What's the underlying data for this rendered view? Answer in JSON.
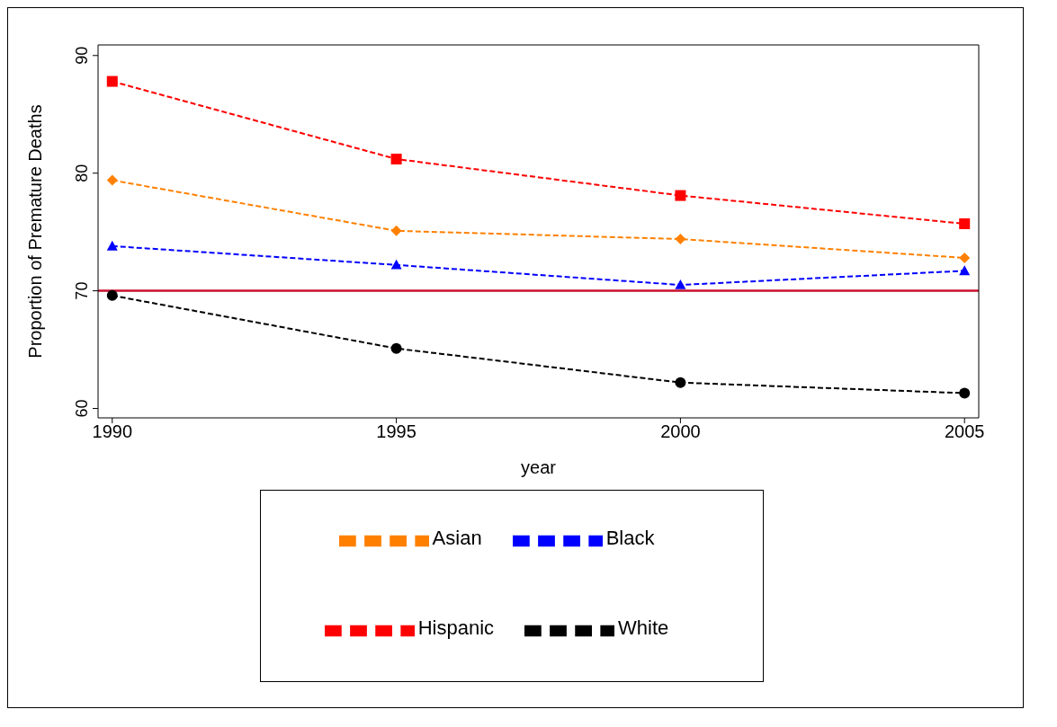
{
  "chart_data": {
    "type": "line",
    "xlabel": "year",
    "ylabel": "Proportion of Premature Deaths",
    "x": [
      1990,
      1995,
      2000,
      2005
    ],
    "series": [
      {
        "name": "White",
        "color": "#000000",
        "marker": "circle",
        "values": [
          69.6,
          65.1,
          62.2,
          61.3
        ]
      },
      {
        "name": "Black",
        "color": "#0000ff",
        "marker": "triangle",
        "values": [
          73.8,
          72.2,
          70.5,
          71.7
        ]
      },
      {
        "name": "Hispanic",
        "color": "#ff0000",
        "marker": "square",
        "values": [
          87.8,
          81.2,
          78.1,
          75.7
        ]
      },
      {
        "name": "Asian",
        "color": "#ff8000",
        "marker": "diamond",
        "values": [
          79.4,
          75.1,
          74.4,
          72.8
        ]
      }
    ],
    "xlim": [
      1989.75,
      2005.25
    ],
    "xticks": [
      1990,
      1995,
      2000,
      2005
    ],
    "ylim": [
      59.2,
      90.9
    ],
    "yticks": [
      60,
      70,
      80,
      90
    ],
    "ref_lines": [
      {
        "axis": "y",
        "value": 70,
        "color": "#c8102e"
      }
    ],
    "line_style": "dashed",
    "grid": false,
    "legend": "bottom"
  }
}
